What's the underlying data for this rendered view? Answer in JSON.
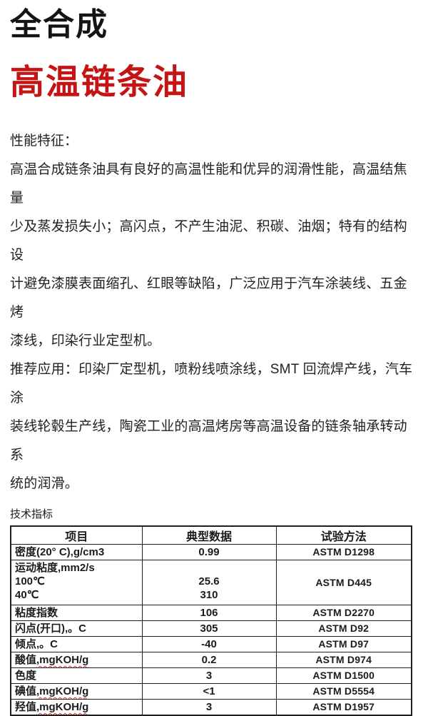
{
  "colors": {
    "accent_red": "#c51414",
    "border_black": "#1e1e1e",
    "wavy_red": "#e03030"
  },
  "header": {
    "title_black": "全合成",
    "title_red": "高温链条油"
  },
  "features": {
    "heading": "性能特征：",
    "paragraph": "高温合成链条油具有良好的高温性能和优异的润滑性能，高温结焦量\n少及蒸发损失小；高闪点，不产生油泥、积碳、油烟；特有的结构设\n计避免漆膜表面缩孔、红眼等缺陷，广泛应用于汽车涂装线、五金烤\n漆线，印染行业定型机。"
  },
  "applications": {
    "paragraph": "推荐应用：印染厂定型机，喷粉线喷涂线，SMT 回流焊产线，汽车涂\n装线轮毂生产线，陶瓷工业的高温烤房等高温设备的链条轴承转动系\n统的润滑。"
  },
  "table": {
    "heading": "技术指标",
    "headers": [
      "项目",
      "典型数据",
      "试验方法"
    ],
    "rows": [
      {
        "item": "密度(20° C),g/cm3",
        "wavy": "",
        "value": "0.99",
        "method": "ASTM D1298",
        "tall": false
      },
      {
        "item": "运动粘度,mm2/s\n100℃\n40℃",
        "wavy": "",
        "value": "\n25.6\n310",
        "method": "ASTM D445",
        "tall": true
      },
      {
        "item": "粘度指数",
        "wavy": "",
        "value": "106",
        "method": "ASTM D2270",
        "tall": false
      },
      {
        "item": "闪点(开口),。C",
        "wavy": "",
        "value": "305",
        "method": "ASTM D92",
        "tall": false
      },
      {
        "item": "倾点,。C",
        "wavy": "",
        "value": "-40",
        "method": "ASTM D97",
        "tall": false
      },
      {
        "item": "酸值",
        "wavy": ",mgKOH/g",
        "value": "0.2",
        "method": "ASTM D974",
        "tall": false
      },
      {
        "item": "色度",
        "wavy": "",
        "value": "3",
        "method": "ASTM D1500",
        "tall": false
      },
      {
        "item": "碘值",
        "wavy": ",mgKOH/g",
        "value": "<1",
        "method": "ASTM D5554",
        "tall": false
      },
      {
        "item": "羟值",
        "wavy": ",mgKOH/g",
        "value": "3",
        "method": "ASTM D1957",
        "tall": false
      }
    ]
  }
}
